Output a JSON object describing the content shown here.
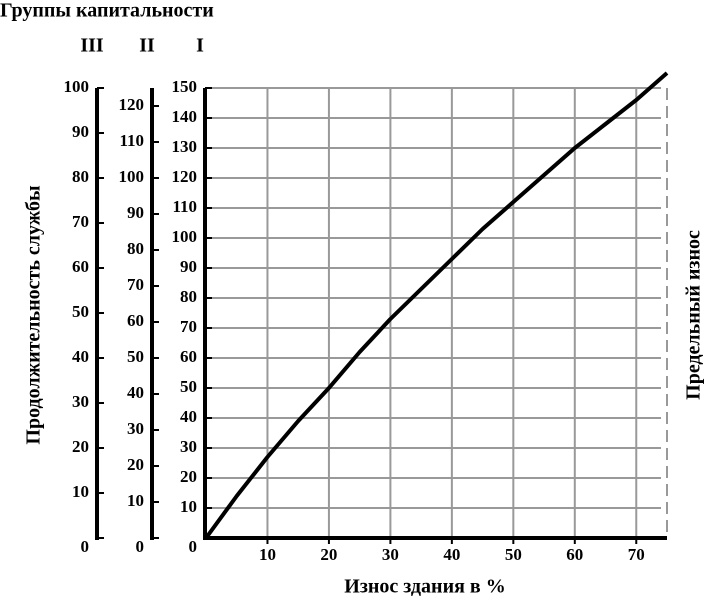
{
  "chart_data": {
    "type": "line",
    "title": "Группы капитальности",
    "ylabel": "Продолжительность службы",
    "xlabel": "Износ здания в %",
    "right_label": "Предельный износ",
    "xlim": [
      0,
      75
    ],
    "xticks": [
      10,
      20,
      30,
      40,
      50,
      60,
      70
    ],
    "axes": [
      {
        "label": "III",
        "ylim": [
          0,
          100
        ],
        "yticks": [
          0,
          10,
          20,
          30,
          40,
          50,
          60,
          70,
          80,
          90,
          100
        ]
      },
      {
        "label": "II",
        "ylim": [
          0,
          125
        ],
        "yticks": [
          0,
          10,
          20,
          30,
          40,
          50,
          60,
          70,
          80,
          90,
          100,
          110,
          120
        ]
      },
      {
        "label": "I",
        "ylim": [
          0,
          150
        ],
        "yticks": [
          0,
          10,
          20,
          30,
          40,
          50,
          60,
          70,
          80,
          90,
          100,
          110,
          120,
          130,
          140,
          150
        ]
      }
    ],
    "grid": true,
    "x": [
      0,
      5,
      10,
      15,
      20,
      25,
      30,
      35,
      40,
      45,
      50,
      55,
      60,
      65,
      70,
      75
    ],
    "series": [
      {
        "color": "#000000",
        "values": [
          0,
          14,
          27,
          39,
          50,
          62,
          73,
          83,
          93,
          103,
          112,
          121,
          130,
          138,
          146,
          155
        ]
      }
    ]
  }
}
